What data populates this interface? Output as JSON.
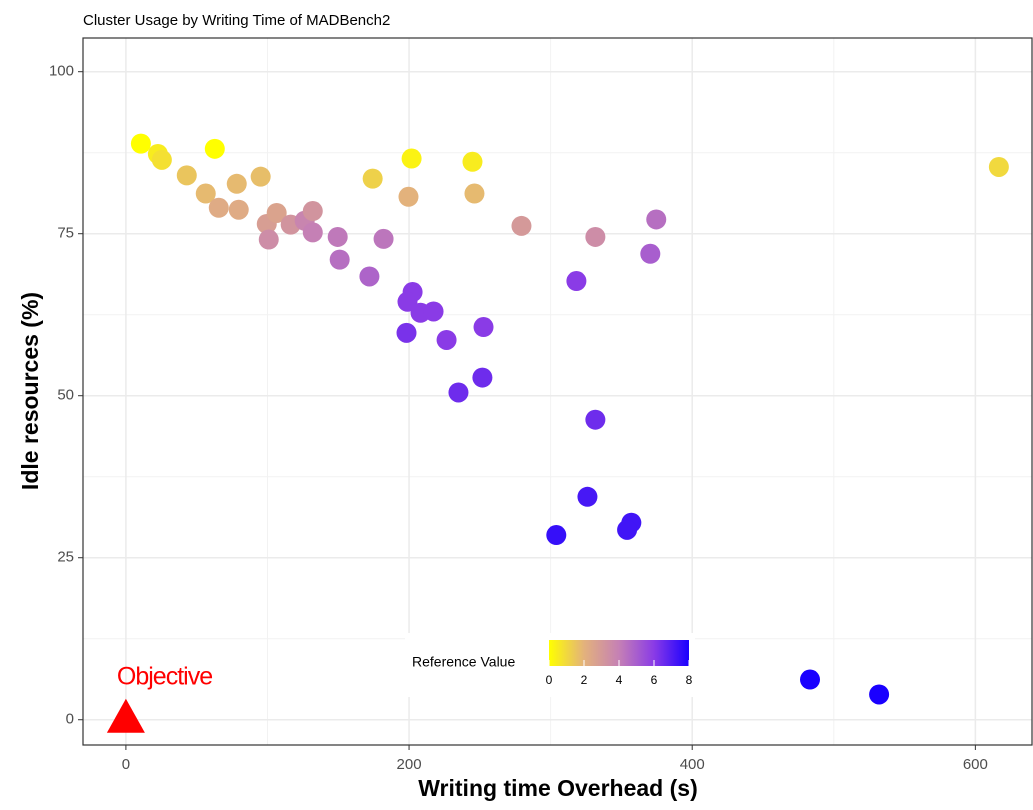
{
  "chart_data": {
    "type": "scatter",
    "title": "Cluster Usage by Writing Time of MADBench2",
    "x_label": "Writing time Overhead (s)",
    "y_label": "Idle resources (%)",
    "x": [
      10.6,
      22.6,
      25.4,
      62.8,
      43,
      56.4,
      78.3,
      95.2,
      65.6,
      79.7,
      99.5,
      106.5,
      100.9,
      116.4,
      126.3,
      132,
      132,
      149.6,
      151,
      174.3,
      182,
      172,
      199.6,
      201.8,
      244.8,
      246.2,
      279.4,
      331.6,
      374.6,
      370.4,
      318.2,
      202.5,
      198.9,
      208.1,
      217.3,
      198.2,
      226.5,
      252.6,
      251.8,
      234.9,
      331.6,
      326,
      304,
      357,
      354,
      483.2,
      532,
      616.6
    ],
    "values": [
      88.9,
      87.3,
      86.4,
      88.1,
      84,
      81.2,
      82.7,
      83.8,
      79,
      78.7,
      76.5,
      78.2,
      74.1,
      76.4,
      77,
      78.5,
      75.2,
      74.5,
      71,
      83.5,
      74.2,
      68.4,
      80.7,
      86.6,
      86.1,
      81.2,
      76.2,
      74.5,
      77.2,
      71.9,
      67.7,
      66,
      64.5,
      62.8,
      63,
      59.7,
      58.6,
      60.6,
      52.8,
      50.5,
      46.3,
      34.4,
      28.5,
      30.4,
      29.3,
      6.2,
      3.9,
      85.3
    ],
    "z": [
      0,
      0.5,
      0.8,
      0,
      1.5,
      1.8,
      1.8,
      1.7,
      2.3,
      2.3,
      2.8,
      2.6,
      3.5,
      3.2,
      3.8,
      3.2,
      4,
      4.2,
      4.5,
      1.2,
      4.3,
      4.8,
      2,
      0.3,
      0.5,
      1.8,
      3,
      3.5,
      4.5,
      5,
      6,
      6,
      6,
      6,
      6,
      6.3,
      6,
      6,
      6.5,
      6.5,
      6.5,
      7.2,
      7.5,
      7.3,
      7.3,
      8,
      8,
      1
    ],
    "legend_title": "Reference Value",
    "zlim": [
      0,
      8
    ],
    "zticks": [
      0,
      2,
      4,
      6,
      8
    ],
    "colors": [
      "#ffff00",
      "#e3b27c",
      "#c580b5",
      "#8a3be6",
      "#1a00ff"
    ],
    "xlim": [
      -30.3,
      640
    ],
    "xticks": [
      0,
      200,
      400,
      600
    ],
    "ylim": [
      -3.9,
      105.2
    ],
    "yticks": [
      0,
      25,
      50,
      75,
      100
    ],
    "grid": true,
    "annotation": {
      "text": "Objective",
      "x": 0,
      "y": 0,
      "color": "#ff0000"
    }
  }
}
